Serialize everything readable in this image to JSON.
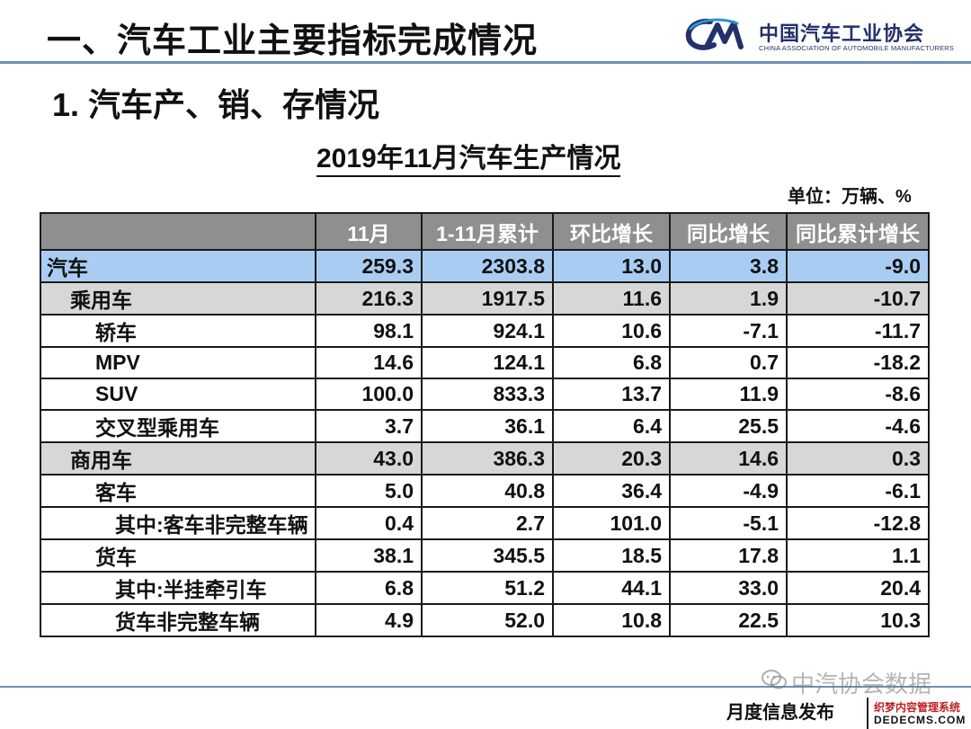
{
  "header": {
    "section_title": "一、汽车工业主要指标完成情况",
    "logo_cn": "中国汽车工业协会",
    "logo_en": "CHINA ASSOCIATION OF AUTOMOBILE MANUFACTURERS",
    "logo_icon": "cam-logo-icon"
  },
  "sub_title": "1. 汽车产、销、存情况",
  "table_title": "2019年11月汽车生产情况",
  "unit": "单位：万辆、%",
  "columns": [
    "",
    "11月",
    "1-11月累计",
    "环比增长",
    "同比增长",
    "同比累计增长"
  ],
  "rows": [
    {
      "name": "汽车",
      "level": 0,
      "v": [
        "259.3",
        "2303.8",
        "13.0",
        "3.8",
        "-9.0"
      ]
    },
    {
      "name": "乘用车",
      "level": 1,
      "v": [
        "216.3",
        "1917.5",
        "11.6",
        "1.9",
        "-10.7"
      ]
    },
    {
      "name": "轿车",
      "level": 2,
      "v": [
        "98.1",
        "924.1",
        "10.6",
        "-7.1",
        "-11.7"
      ]
    },
    {
      "name": "MPV",
      "level": 2,
      "v": [
        "14.6",
        "124.1",
        "6.8",
        "0.7",
        "-18.2"
      ]
    },
    {
      "name": "SUV",
      "level": 2,
      "v": [
        "100.0",
        "833.3",
        "13.7",
        "11.9",
        "-8.6"
      ]
    },
    {
      "name": "交叉型乘用车",
      "level": 2,
      "v": [
        "3.7",
        "36.1",
        "6.4",
        "25.5",
        "-4.6"
      ]
    },
    {
      "name": "商用车",
      "level": 1,
      "v": [
        "43.0",
        "386.3",
        "20.3",
        "14.6",
        "0.3"
      ]
    },
    {
      "name": "客车",
      "level": 2,
      "v": [
        "5.0",
        "40.8",
        "36.4",
        "-4.9",
        "-6.1"
      ]
    },
    {
      "name": "其中:客车非完整车辆",
      "level": 3,
      "v": [
        "0.4",
        "2.7",
        "101.0",
        "-5.1",
        "-12.8"
      ]
    },
    {
      "name": "货车",
      "level": 2,
      "v": [
        "38.1",
        "345.5",
        "18.5",
        "17.8",
        "1.1"
      ]
    },
    {
      "name": "其中:半挂牵引车",
      "level": 3,
      "v": [
        "6.8",
        "51.2",
        "44.1",
        "33.0",
        "20.4"
      ]
    },
    {
      "name": "货车非完整车辆",
      "level": 3,
      "v": [
        "4.9",
        "52.0",
        "10.8",
        "22.5",
        "10.3"
      ]
    }
  ],
  "footer": {
    "text": "月度信息发布",
    "watermark": "中汽协会数据",
    "watermark_icon": "wechat-icon",
    "badge_top": "织梦内容管理系统",
    "badge_bottom": "DEDECMS.COM"
  },
  "colors": {
    "total_row": "#a9cdf2",
    "category_row": "#d7d7d7",
    "header_row": "#8f8f8f",
    "accent_rule": "#6d8fb8",
    "logo": "#23306b"
  }
}
